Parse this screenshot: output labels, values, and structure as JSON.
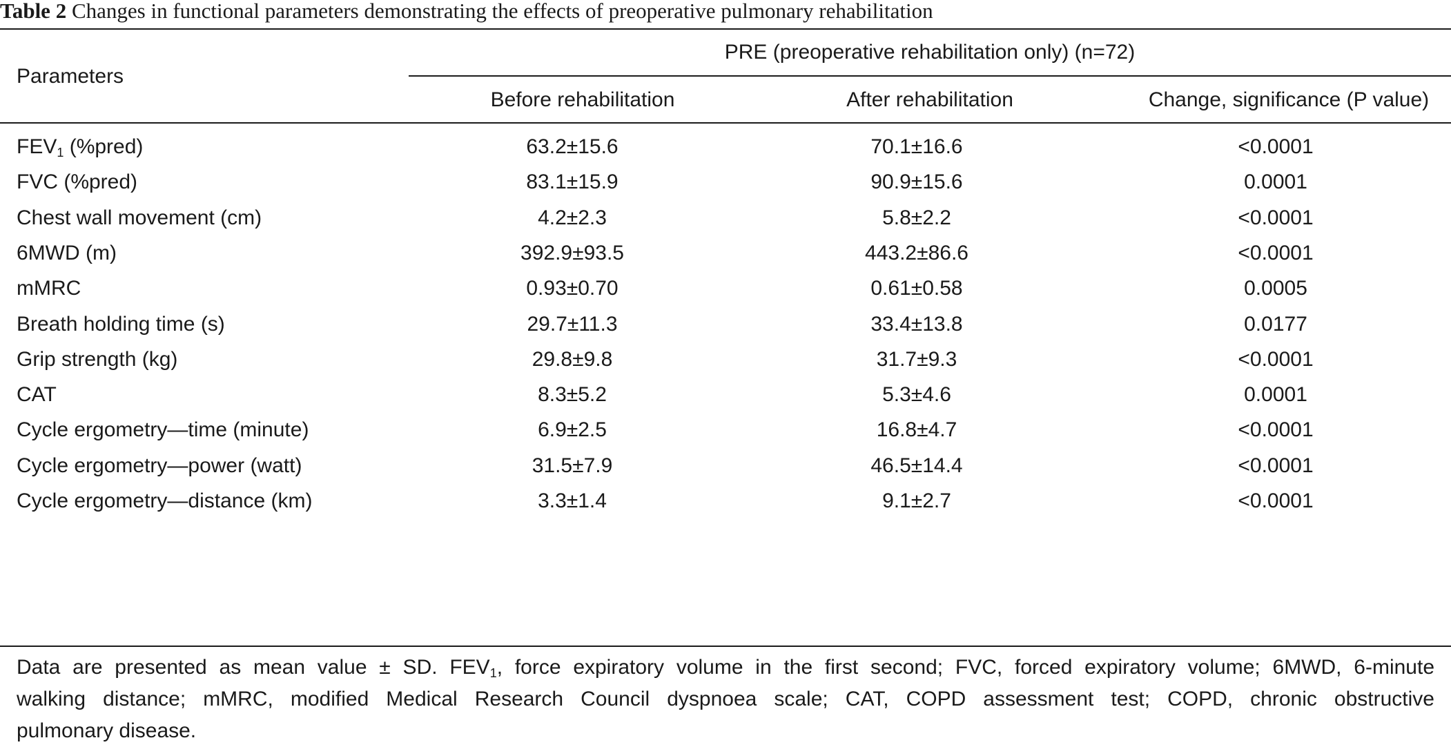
{
  "table": {
    "caption_label": "Table 2",
    "caption_text": "Changes in functional parameters demonstrating the effects of preoperative pulmonary rehabilitation",
    "header": {
      "parameters": "Parameters",
      "group": "PRE (preoperative rehabilitation only) (n=72)",
      "before": "Before rehabilitation",
      "after": "After rehabilitation",
      "change": "Change, significance (P value)"
    },
    "rows": [
      {
        "param_main": "FEV",
        "param_sub": "1",
        "param_tail": " (%pred)",
        "before": "63.2±15.6",
        "after": "70.1±16.6",
        "change": "<0.0001"
      },
      {
        "param_main": "FVC (%pred)",
        "param_sub": "",
        "param_tail": "",
        "before": "83.1±15.9",
        "after": "90.9±15.6",
        "change": "0.0001"
      },
      {
        "param_main": "Chest wall movement (cm)",
        "param_sub": "",
        "param_tail": "",
        "before": "4.2±2.3",
        "after": "5.8±2.2",
        "change": "<0.0001"
      },
      {
        "param_main": "6MWD (m)",
        "param_sub": "",
        "param_tail": "",
        "before": "392.9±93.5",
        "after": "443.2±86.6",
        "change": "<0.0001"
      },
      {
        "param_main": "mMRC",
        "param_sub": "",
        "param_tail": "",
        "before": "0.93±0.70",
        "after": "0.61±0.58",
        "change": "0.0005"
      },
      {
        "param_main": "Breath holding time (s)",
        "param_sub": "",
        "param_tail": "",
        "before": "29.7±11.3",
        "after": "33.4±13.8",
        "change": "0.0177"
      },
      {
        "param_main": "Grip strength (kg)",
        "param_sub": "",
        "param_tail": "",
        "before": "29.8±9.8",
        "after": "31.7±9.3",
        "change": "<0.0001"
      },
      {
        "param_main": "CAT",
        "param_sub": "",
        "param_tail": "",
        "before": "8.3±5.2",
        "after": "5.3±4.6",
        "change": "0.0001"
      },
      {
        "param_main": "Cycle ergometry—time (minute)",
        "param_sub": "",
        "param_tail": "",
        "before": "6.9±2.5",
        "after": "16.8±4.7",
        "change": "<0.0001"
      },
      {
        "param_main": "Cycle ergometry—power (watt)",
        "param_sub": "",
        "param_tail": "",
        "before": "31.5±7.9",
        "after": "46.5±14.4",
        "change": "<0.0001"
      },
      {
        "param_main": "Cycle ergometry—distance (km)",
        "param_sub": "",
        "param_tail": "",
        "before": "3.3±1.4",
        "after": "9.1±2.7",
        "change": "<0.0001"
      }
    ],
    "footnote": {
      "line1_a": "Data are presented as mean value ± SD. FEV",
      "line1_sub": "1",
      "line1_b": ", force expiratory volume in the first second; FVC, forced expiratory volume; 6MWD, 6-minute",
      "line2": "walking distance; mMRC, modified Medical Research Council dyspnoea scale; CAT, COPD assessment test; COPD, chronic obstructive",
      "line3": "pulmonary disease."
    }
  }
}
